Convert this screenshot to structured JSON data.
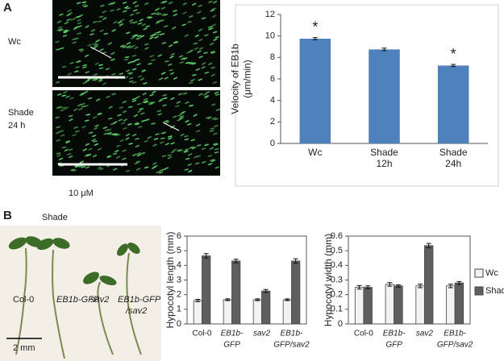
{
  "panel_labels": [
    "A",
    "B"
  ],
  "micrographs": {
    "labels": [
      [
        "Wc"
      ],
      [
        "Shade",
        "24 h"
      ]
    ],
    "scale": "10 μM"
  },
  "photo": {
    "title": "Shade",
    "labels": [
      "Col-0",
      "EB1b-GFP",
      "sav2",
      [
        "EB1b-GFP",
        "/sav2"
      ]
    ],
    "scale": "2 mm"
  },
  "chart_data": [
    {
      "type": "bar",
      "ylabel": [
        "Velocity of EB1b",
        "(μm/min)"
      ],
      "categories": [
        [
          "Wc"
        ],
        [
          "Shade",
          "12h"
        ],
        [
          "Shade",
          "24h"
        ]
      ],
      "values": [
        9.75,
        8.75,
        7.25
      ],
      "errors": [
        0.1,
        0.12,
        0.1
      ],
      "annotations": [
        "*",
        null,
        "*"
      ],
      "color": "#4f81bd",
      "ylim": [
        0,
        12
      ],
      "yticks": [
        0,
        2,
        4,
        6,
        8,
        10,
        12
      ]
    },
    {
      "type": "grouped_bar",
      "ylabel": [
        "Hypocotyl length (mm)"
      ],
      "categories": [
        [
          "Col-0"
        ],
        [
          "EB1b-",
          "GFP"
        ],
        [
          "sav2"
        ],
        [
          "EB1b-",
          "GFP/sav2"
        ]
      ],
      "series": [
        {
          "name": "Wc",
          "color": "#f2f2f2",
          "values": [
            1.6,
            1.65,
            1.65,
            1.65
          ],
          "errors": [
            0.08,
            0.06,
            0.06,
            0.06
          ]
        },
        {
          "name": "Shade",
          "color": "#5f5f5f",
          "values": [
            4.65,
            4.3,
            2.25,
            4.3
          ],
          "errors": [
            0.15,
            0.12,
            0.1,
            0.15
          ]
        }
      ],
      "ylim": [
        0,
        6
      ],
      "yticks": [
        0,
        1,
        2,
        3,
        4,
        5,
        6
      ]
    },
    {
      "type": "grouped_bar",
      "ylabel": [
        "Hypocotyl width (mm)"
      ],
      "categories": [
        [
          "Col-0"
        ],
        [
          "EB1b-",
          "GFP"
        ],
        [
          "sav2"
        ],
        [
          "EB1b-",
          "GFP/sav2"
        ]
      ],
      "series": [
        {
          "name": "Wc",
          "color": "#f2f2f2",
          "values": [
            0.25,
            0.27,
            0.26,
            0.26
          ],
          "errors": [
            0.012,
            0.012,
            0.012,
            0.012
          ]
        },
        {
          "name": "Shade",
          "color": "#5f5f5f",
          "values": [
            0.25,
            0.26,
            0.535,
            0.28
          ],
          "errors": [
            0.01,
            0.008,
            0.015,
            0.01
          ]
        }
      ],
      "ylim": [
        0,
        0.6
      ],
      "yticks": [
        0,
        0.1,
        0.2,
        0.3,
        0.4,
        0.5,
        0.6
      ],
      "legend": "right"
    }
  ]
}
